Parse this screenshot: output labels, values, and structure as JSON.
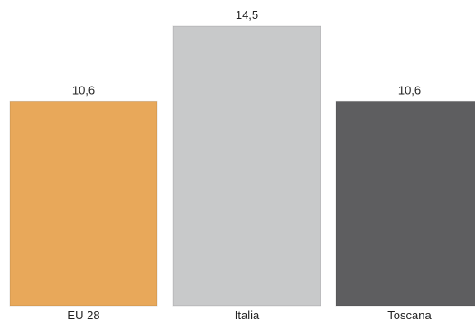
{
  "chart_data": {
    "type": "bar",
    "categories": [
      "EU 28",
      "Italia",
      "Toscana"
    ],
    "values": [
      10.6,
      14.5,
      10.6
    ],
    "value_labels": [
      "10,6",
      "14,5",
      "10,6"
    ],
    "colors": [
      "#e8a85a",
      "#c8c9ca",
      "#5e5e60"
    ],
    "title": "",
    "xlabel": "",
    "ylabel": "",
    "ylim": [
      0,
      14.5
    ],
    "grid": false,
    "legend": "none"
  }
}
